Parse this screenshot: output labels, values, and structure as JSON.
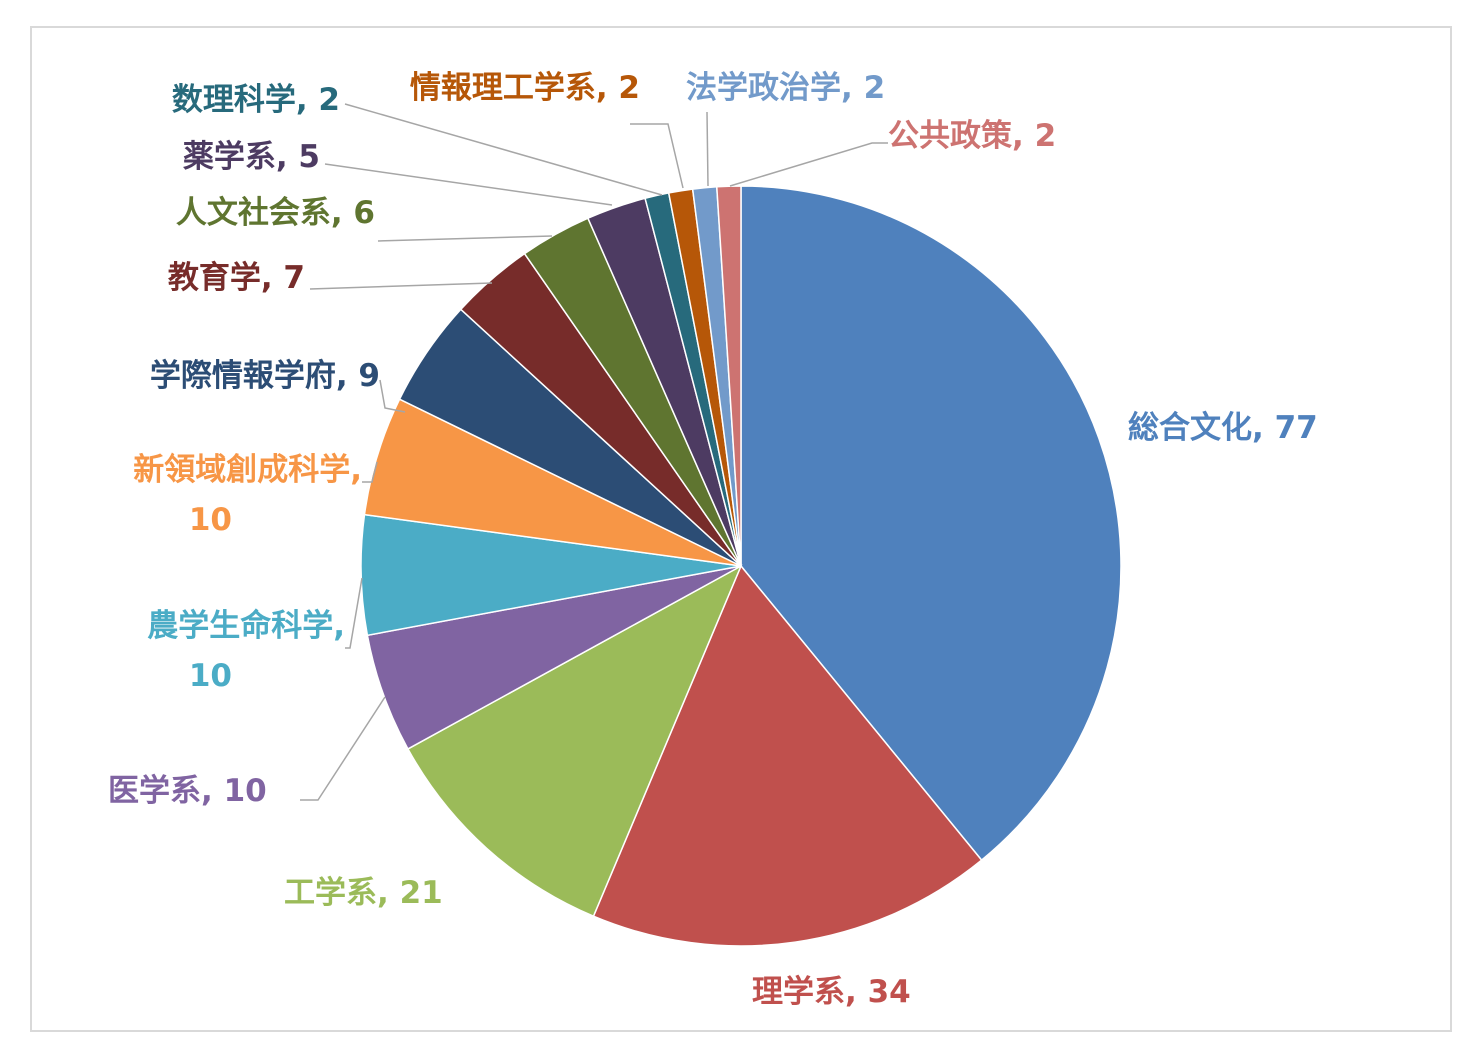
{
  "chart_data": {
    "type": "pie",
    "title": "",
    "slices": [
      {
        "label": "総合文化",
        "value": 77,
        "color": "#4f81bd"
      },
      {
        "label": "理学系",
        "value": 34,
        "color": "#c0504d"
      },
      {
        "label": "工学系",
        "value": 21,
        "color": "#9bbb59"
      },
      {
        "label": "医学系",
        "value": 10,
        "color": "#8064a2"
      },
      {
        "label": "農学生命科学",
        "value": 10,
        "color": "#4bacc6"
      },
      {
        "label": "新領域創成科学",
        "value": 10,
        "color": "#f79646"
      },
      {
        "label": "学際情報学府",
        "value": 9,
        "color": "#2c4d75"
      },
      {
        "label": "教育学",
        "value": 7,
        "color": "#772c2a"
      },
      {
        "label": "人文社会系",
        "value": 6,
        "color": "#5f7530"
      },
      {
        "label": "薬学系",
        "value": 5,
        "color": "#4d3b62"
      },
      {
        "label": "数理科学",
        "value": 2,
        "color": "#276a7c"
      },
      {
        "label": "情報理工学系",
        "value": 2,
        "color": "#b65708"
      },
      {
        "label": "法学政治学",
        "value": 2,
        "color": "#729aca"
      },
      {
        "label": "公共政策",
        "value": 2,
        "color": "#cd7371"
      }
    ]
  }
}
